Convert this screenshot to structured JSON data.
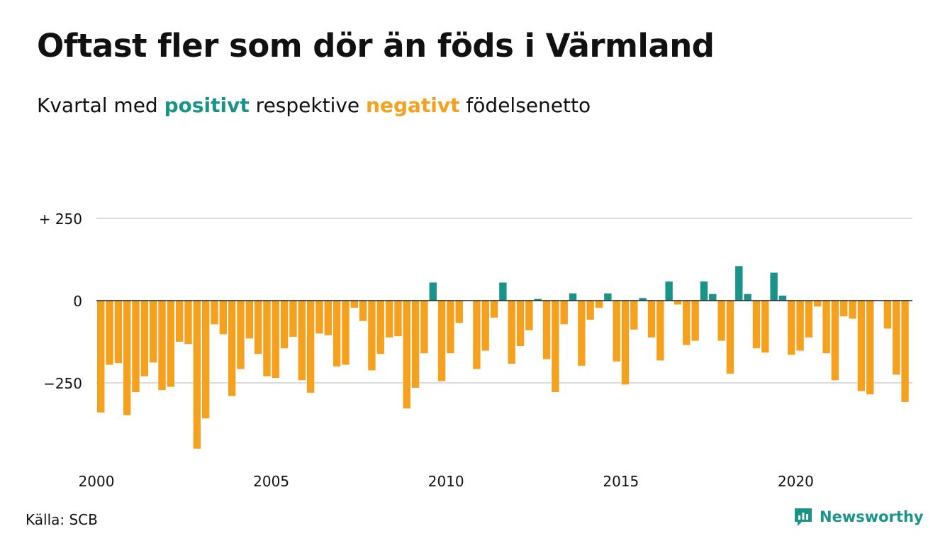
{
  "title": "Oftast fler som dör än föds i Värmland",
  "subtitle": {
    "prefix": "Kvartal med ",
    "positive_word": "positivt",
    "middle": " respektive ",
    "negative_word": "negativt",
    "suffix": " födelsenetto"
  },
  "source": "Källa: SCB",
  "brand": "Newsworthy",
  "colors": {
    "positive": "#1a9488",
    "negative": "#f5a11e",
    "grid": "#dddddd",
    "zero_line": "#222222"
  },
  "chart_data": {
    "type": "bar",
    "x_start_year": 2000,
    "periods_per_year": 4,
    "y_ticks": [
      {
        "value": 250,
        "label": "+ 250"
      },
      {
        "value": 0,
        "label": "0"
      },
      {
        "value": -250,
        "label": "−250"
      }
    ],
    "x_ticks": [
      {
        "value": 2000,
        "label": "2000"
      },
      {
        "value": 2005,
        "label": "2005"
      },
      {
        "value": 2010,
        "label": "2010"
      },
      {
        "value": 2015,
        "label": "2015"
      },
      {
        "value": 2020,
        "label": "2020"
      }
    ],
    "ylim": [
      -460,
      250
    ],
    "grid": true,
    "values": [
      -340,
      -195,
      -190,
      -348,
      -278,
      -230,
      -188,
      -272,
      -262,
      -125,
      -132,
      -450,
      -358,
      -72,
      -102,
      -290,
      -208,
      -115,
      -162,
      -230,
      -235,
      -145,
      -110,
      -242,
      -280,
      -100,
      -105,
      -200,
      -195,
      -22,
      -62,
      -212,
      -162,
      -112,
      -108,
      -328,
      -265,
      -160,
      55,
      -245,
      -160,
      -68,
      0,
      -208,
      -152,
      -52,
      55,
      -192,
      -138,
      -90,
      5,
      -178,
      -278,
      -72,
      22,
      -198,
      -58,
      -22,
      22,
      -185,
      -255,
      -88,
      8,
      -112,
      -182,
      58,
      -12,
      -135,
      -122,
      58,
      20,
      -122,
      -222,
      105,
      20,
      -145,
      -158,
      85,
      15,
      -165,
      -152,
      -112,
      -18,
      -160,
      -242,
      -48,
      -55,
      -275,
      -285,
      0,
      -85,
      -225,
      -308
    ]
  }
}
